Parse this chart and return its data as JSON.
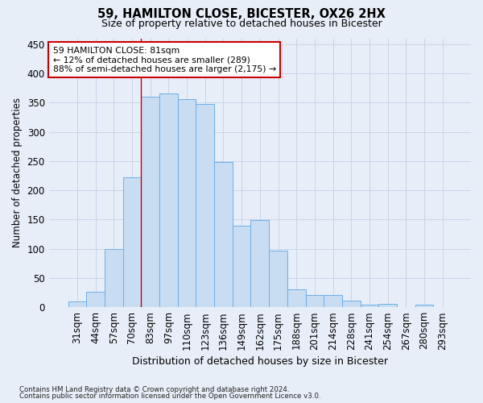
{
  "title1": "59, HAMILTON CLOSE, BICESTER, OX26 2HX",
  "title2": "Size of property relative to detached houses in Bicester",
  "xlabel": "Distribution of detached houses by size in Bicester",
  "ylabel": "Number of detached properties",
  "categories": [
    "31sqm",
    "44sqm",
    "57sqm",
    "70sqm",
    "83sqm",
    "97sqm",
    "110sqm",
    "123sqm",
    "136sqm",
    "149sqm",
    "162sqm",
    "175sqm",
    "188sqm",
    "201sqm",
    "214sqm",
    "228sqm",
    "241sqm",
    "254sqm",
    "267sqm",
    "280sqm",
    "293sqm"
  ],
  "values": [
    10,
    27,
    99,
    222,
    360,
    365,
    356,
    348,
    249,
    139,
    149,
    97,
    30,
    21,
    21,
    11,
    4,
    6,
    0,
    4,
    0
  ],
  "bar_color": "#c9ddf2",
  "bar_edge_color": "#6aaee8",
  "grid_color": "#c8d4e8",
  "annotation_text": "59 HAMILTON CLOSE: 81sqm\n← 12% of detached houses are smaller (289)\n88% of semi-detached houses are larger (2,175) →",
  "annotation_box_color": "#ffffff",
  "annotation_box_edge_color": "#cc0000",
  "vline_color": "#cc0000",
  "vline_x_index": 4,
  "footnote1": "Contains HM Land Registry data © Crown copyright and database right 2024.",
  "footnote2": "Contains public sector information licensed under the Open Government Licence v3.0.",
  "ylim": [
    0,
    460
  ],
  "background_color": "#e8eef8"
}
